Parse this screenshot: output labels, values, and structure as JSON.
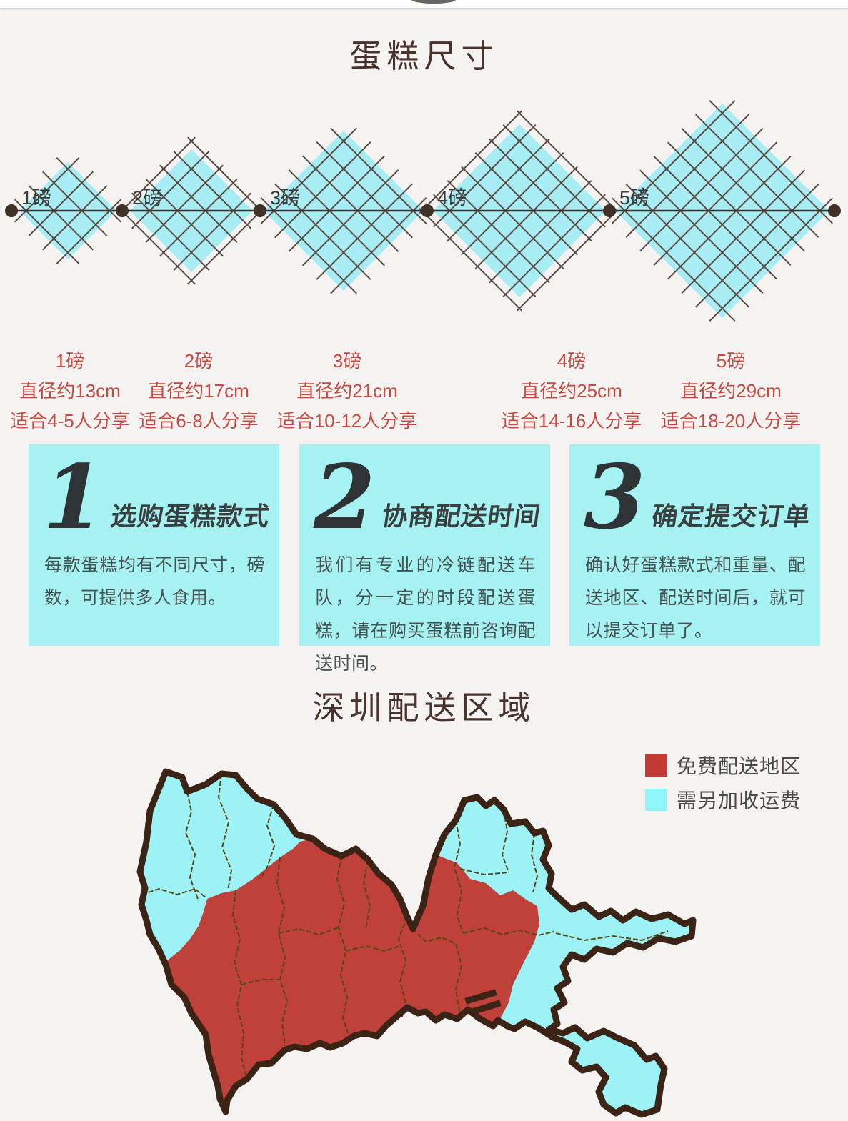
{
  "size_section": {
    "title": "蛋糕尺寸",
    "items": [
      {
        "label": "1磅",
        "diameter": "直径约13cm",
        "serving": "适合4-5人分享"
      },
      {
        "label": "2磅",
        "diameter": "直径约17cm",
        "serving": "适合6-8人分享"
      },
      {
        "label": "3磅",
        "diameter": "直径约21cm",
        "serving": "适合10-12人分享"
      },
      {
        "label": "4磅",
        "diameter": "直径约25cm",
        "serving": "适合14-16人分享"
      },
      {
        "label": "5磅",
        "diameter": "直径约29cm",
        "serving": "适合18-20人分享"
      }
    ],
    "colors": {
      "diamond": "#a9edf4",
      "hatch_line": "#5a4a43",
      "axis_line": "#3f3028",
      "dot": "#3f3028",
      "label_text": "#3a3a3a",
      "caption_text": "#c84a42"
    }
  },
  "steps_section": {
    "items": [
      {
        "number": "1",
        "heading": "选购蛋糕款式",
        "body": "每款蛋糕均有不同尺寸，磅数，可提供多人食用。"
      },
      {
        "number": "2",
        "heading": "协商配送时间",
        "body": "我们有专业的冷链配送车队，分一定的时段配送蛋糕，请在购买蛋糕前咨询配送时间。"
      },
      {
        "number": "3",
        "heading": "确定提交订单",
        "body": "确认好蛋糕款式和重量、配送地区、配送时间后，就可以提交订单了。"
      }
    ],
    "colors": {
      "box_bg": "#a6f1f1",
      "number": "#2e3436",
      "heading": "#39403f",
      "body": "#475252"
    }
  },
  "map_section": {
    "title": "深圳配送区域",
    "legend": [
      {
        "swatch_color": "#c23a33",
        "label": "免费配送地区"
      },
      {
        "swatch_color": "#8ff5f8",
        "label": "需另加收运费"
      }
    ],
    "colors": {
      "free_area": "#c0403a",
      "fee_area": "#9cf2f5",
      "outline": "#3b2416",
      "district_line": "#5a4712"
    }
  }
}
